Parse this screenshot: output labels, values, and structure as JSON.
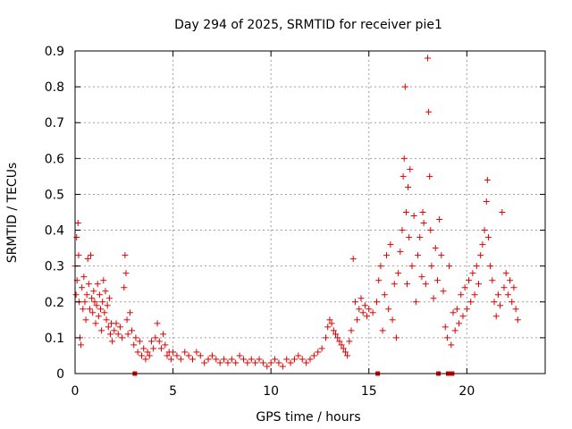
{
  "chart_data": {
    "type": "scatter",
    "title": "Day 294 of 2025, SRMTID for receiver pie1",
    "xlabel": "GPS time / hours",
    "ylabel": "SRMTID / TECUs",
    "xlim": [
      0,
      24
    ],
    "ylim": [
      0,
      0.9
    ],
    "x_ticks": [
      0,
      5,
      10,
      15,
      20
    ],
    "x_tick_labels": [
      "0",
      "5",
      "10",
      "15",
      "20"
    ],
    "y_ticks": [
      0,
      0.1,
      0.2,
      0.3,
      0.4,
      0.5,
      0.6,
      0.7,
      0.8,
      0.9
    ],
    "y_tick_labels": [
      "0",
      "0.1",
      "0.2",
      "0.3",
      "0.4",
      "0.5",
      "0.6",
      "0.7",
      "0.8",
      "0.9"
    ],
    "grid": true,
    "marker": "+",
    "color": "#e00000",
    "series": [
      {
        "name": "SRMTID",
        "points": [
          [
            0.0,
            0.3
          ],
          [
            0.05,
            0.22
          ],
          [
            0.08,
            0.38
          ],
          [
            0.1,
            0.26
          ],
          [
            0.15,
            0.42
          ],
          [
            0.18,
            0.33
          ],
          [
            0.2,
            0.2
          ],
          [
            0.25,
            0.1
          ],
          [
            0.3,
            0.08
          ],
          [
            0.35,
            0.24
          ],
          [
            0.4,
            0.18
          ],
          [
            0.45,
            0.27
          ],
          [
            0.5,
            0.2
          ],
          [
            0.55,
            0.15
          ],
          [
            0.6,
            0.22
          ],
          [
            0.65,
            0.32
          ],
          [
            0.7,
            0.25
          ],
          [
            0.75,
            0.18
          ],
          [
            0.8,
            0.33
          ],
          [
            0.85,
            0.21
          ],
          [
            0.9,
            0.17
          ],
          [
            0.95,
            0.23
          ],
          [
            1.0,
            0.2
          ],
          [
            1.05,
            0.14
          ],
          [
            1.1,
            0.19
          ],
          [
            1.15,
            0.25
          ],
          [
            1.2,
            0.16
          ],
          [
            1.25,
            0.22
          ],
          [
            1.3,
            0.18
          ],
          [
            1.35,
            0.12
          ],
          [
            1.4,
            0.2
          ],
          [
            1.45,
            0.26
          ],
          [
            1.5,
            0.17
          ],
          [
            1.55,
            0.23
          ],
          [
            1.6,
            0.15
          ],
          [
            1.65,
            0.19
          ],
          [
            1.7,
            0.13
          ],
          [
            1.75,
            0.21
          ],
          [
            1.8,
            0.11
          ],
          [
            1.85,
            0.14
          ],
          [
            1.9,
            0.09
          ],
          [
            2.0,
            0.12
          ],
          [
            2.1,
            0.14
          ],
          [
            2.2,
            0.11
          ],
          [
            2.3,
            0.13
          ],
          [
            2.4,
            0.1
          ],
          [
            2.5,
            0.24
          ],
          [
            2.55,
            0.33
          ],
          [
            2.6,
            0.28
          ],
          [
            2.65,
            0.15
          ],
          [
            2.7,
            0.11
          ],
          [
            2.8,
            0.17
          ],
          [
            2.9,
            0.12
          ],
          [
            3.0,
            0.08
          ],
          [
            3.1,
            0.1
          ],
          [
            3.2,
            0.06
          ],
          [
            3.3,
            0.09
          ],
          [
            3.4,
            0.05
          ],
          [
            3.5,
            0.07
          ],
          [
            3.6,
            0.04
          ],
          [
            3.7,
            0.06
          ],
          [
            3.8,
            0.05
          ],
          [
            3.9,
            0.09
          ],
          [
            4.0,
            0.07
          ],
          [
            4.1,
            0.1
          ],
          [
            4.2,
            0.14
          ],
          [
            4.3,
            0.09
          ],
          [
            4.4,
            0.07
          ],
          [
            4.5,
            0.11
          ],
          [
            4.6,
            0.08
          ],
          [
            4.7,
            0.05
          ],
          [
            4.8,
            0.06
          ],
          [
            4.9,
            0.04
          ],
          [
            5.0,
            0.06
          ],
          [
            5.2,
            0.05
          ],
          [
            5.4,
            0.04
          ],
          [
            5.6,
            0.06
          ],
          [
            5.8,
            0.05
          ],
          [
            6.0,
            0.04
          ],
          [
            6.2,
            0.06
          ],
          [
            6.4,
            0.05
          ],
          [
            6.6,
            0.03
          ],
          [
            6.8,
            0.04
          ],
          [
            7.0,
            0.05
          ],
          [
            7.2,
            0.04
          ],
          [
            7.4,
            0.03
          ],
          [
            7.6,
            0.04
          ],
          [
            7.8,
            0.03
          ],
          [
            8.0,
            0.04
          ],
          [
            8.2,
            0.03
          ],
          [
            8.4,
            0.05
          ],
          [
            8.6,
            0.04
          ],
          [
            8.8,
            0.03
          ],
          [
            9.0,
            0.04
          ],
          [
            9.2,
            0.03
          ],
          [
            9.4,
            0.04
          ],
          [
            9.6,
            0.03
          ],
          [
            9.8,
            0.02
          ],
          [
            10.0,
            0.03
          ],
          [
            10.2,
            0.04
          ],
          [
            10.4,
            0.03
          ],
          [
            10.6,
            0.02
          ],
          [
            10.8,
            0.04
          ],
          [
            11.0,
            0.03
          ],
          [
            11.2,
            0.04
          ],
          [
            11.4,
            0.05
          ],
          [
            11.6,
            0.04
          ],
          [
            11.8,
            0.03
          ],
          [
            12.0,
            0.04
          ],
          [
            12.2,
            0.05
          ],
          [
            12.4,
            0.06
          ],
          [
            12.6,
            0.07
          ],
          [
            12.8,
            0.1
          ],
          [
            12.9,
            0.13
          ],
          [
            13.0,
            0.15
          ],
          [
            13.1,
            0.14
          ],
          [
            13.2,
            0.12
          ],
          [
            13.3,
            0.11
          ],
          [
            13.4,
            0.1
          ],
          [
            13.5,
            0.09
          ],
          [
            13.6,
            0.08
          ],
          [
            13.7,
            0.07
          ],
          [
            13.8,
            0.06
          ],
          [
            13.9,
            0.05
          ],
          [
            14.0,
            0.09
          ],
          [
            14.1,
            0.12
          ],
          [
            14.2,
            0.32
          ],
          [
            14.3,
            0.2
          ],
          [
            14.4,
            0.15
          ],
          [
            14.5,
            0.18
          ],
          [
            14.6,
            0.21
          ],
          [
            14.7,
            0.17
          ],
          [
            14.8,
            0.19
          ],
          [
            14.9,
            0.16
          ],
          [
            15.0,
            0.18
          ],
          [
            15.2,
            0.17
          ],
          [
            15.4,
            0.2
          ],
          [
            15.5,
            0.26
          ],
          [
            15.6,
            0.3
          ],
          [
            15.7,
            0.12
          ],
          [
            15.8,
            0.22
          ],
          [
            15.9,
            0.33
          ],
          [
            16.0,
            0.18
          ],
          [
            16.1,
            0.36
          ],
          [
            16.2,
            0.15
          ],
          [
            16.3,
            0.25
          ],
          [
            16.4,
            0.1
          ],
          [
            16.5,
            0.28
          ],
          [
            16.6,
            0.34
          ],
          [
            16.7,
            0.4
          ],
          [
            16.75,
            0.55
          ],
          [
            16.8,
            0.6
          ],
          [
            16.85,
            0.8
          ],
          [
            16.9,
            0.45
          ],
          [
            16.95,
            0.25
          ],
          [
            17.0,
            0.52
          ],
          [
            17.05,
            0.38
          ],
          [
            17.1,
            0.57
          ],
          [
            17.2,
            0.3
          ],
          [
            17.3,
            0.44
          ],
          [
            17.4,
            0.2
          ],
          [
            17.5,
            0.33
          ],
          [
            17.6,
            0.38
          ],
          [
            17.7,
            0.27
          ],
          [
            17.75,
            0.45
          ],
          [
            17.8,
            0.42
          ],
          [
            17.9,
            0.25
          ],
          [
            18.0,
            0.88
          ],
          [
            18.05,
            0.73
          ],
          [
            18.1,
            0.55
          ],
          [
            18.15,
            0.4
          ],
          [
            18.2,
            0.3
          ],
          [
            18.3,
            0.21
          ],
          [
            18.4,
            0.35
          ],
          [
            18.5,
            0.26
          ],
          [
            18.6,
            0.43
          ],
          [
            18.7,
            0.33
          ],
          [
            18.8,
            0.23
          ],
          [
            18.9,
            0.13
          ],
          [
            19.0,
            0.1
          ],
          [
            19.1,
            0.3
          ],
          [
            19.2,
            0.08
          ],
          [
            19.3,
            0.17
          ],
          [
            19.4,
            0.12
          ],
          [
            19.5,
            0.18
          ],
          [
            19.6,
            0.14
          ],
          [
            19.7,
            0.22
          ],
          [
            19.8,
            0.16
          ],
          [
            19.9,
            0.24
          ],
          [
            20.0,
            0.18
          ],
          [
            20.1,
            0.26
          ],
          [
            20.2,
            0.2
          ],
          [
            20.3,
            0.28
          ],
          [
            20.4,
            0.22
          ],
          [
            20.5,
            0.3
          ],
          [
            20.6,
            0.25
          ],
          [
            20.7,
            0.33
          ],
          [
            20.8,
            0.36
          ],
          [
            20.9,
            0.4
          ],
          [
            21.0,
            0.48
          ],
          [
            21.05,
            0.54
          ],
          [
            21.1,
            0.38
          ],
          [
            21.2,
            0.3
          ],
          [
            21.3,
            0.26
          ],
          [
            21.4,
            0.2
          ],
          [
            21.5,
            0.16
          ],
          [
            21.6,
            0.22
          ],
          [
            21.7,
            0.19
          ],
          [
            21.8,
            0.45
          ],
          [
            21.9,
            0.24
          ],
          [
            22.0,
            0.28
          ],
          [
            22.1,
            0.22
          ],
          [
            22.2,
            0.26
          ],
          [
            22.3,
            0.2
          ],
          [
            22.4,
            0.24
          ],
          [
            22.5,
            0.18
          ],
          [
            22.6,
            0.15
          ]
        ]
      }
    ],
    "bad_data_markers_x": [
      3.05,
      15.45,
      18.55,
      19.05,
      19.25
    ]
  }
}
